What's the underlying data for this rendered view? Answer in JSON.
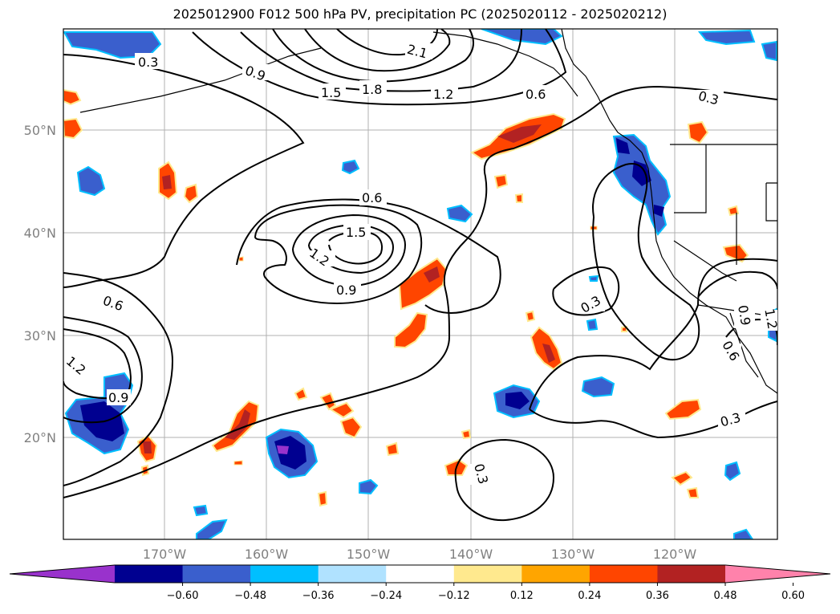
{
  "title": "2025012900 F012 500 hPa PV, precipitation PC (2025020112 - 2025020212)",
  "lat_labels": [
    "50°N",
    "40°N",
    "30°N",
    "20°N"
  ],
  "lon_labels": [
    "170°W",
    "160°W",
    "150°W",
    "140°W",
    "130°W",
    "120°W"
  ],
  "contour_labels": [
    "0.3",
    "0.9",
    "1.5",
    "1.8",
    "2.1",
    "1.2",
    "0.6",
    "0.3",
    "0.6",
    "1.5",
    "1.2",
    "0.9",
    "0.6",
    "1.2",
    "0.9",
    "0.3",
    "0.3",
    "0.3",
    "0.9",
    "0.6",
    "1.2"
  ],
  "colorbar": {
    "ticks": [
      "−0.60",
      "−0.48",
      "−0.36",
      "−0.24",
      "−0.12",
      "0.12",
      "0.24",
      "0.36",
      "0.48",
      "0.60"
    ],
    "colors": [
      "#9932cc",
      "#000090",
      "#3a5fcd",
      "#00bfff",
      "#b0e2ff",
      "#ffffff",
      "#ffe98e",
      "#ffa500",
      "#ff4500",
      "#b22222",
      "#ff82ab"
    ]
  }
}
